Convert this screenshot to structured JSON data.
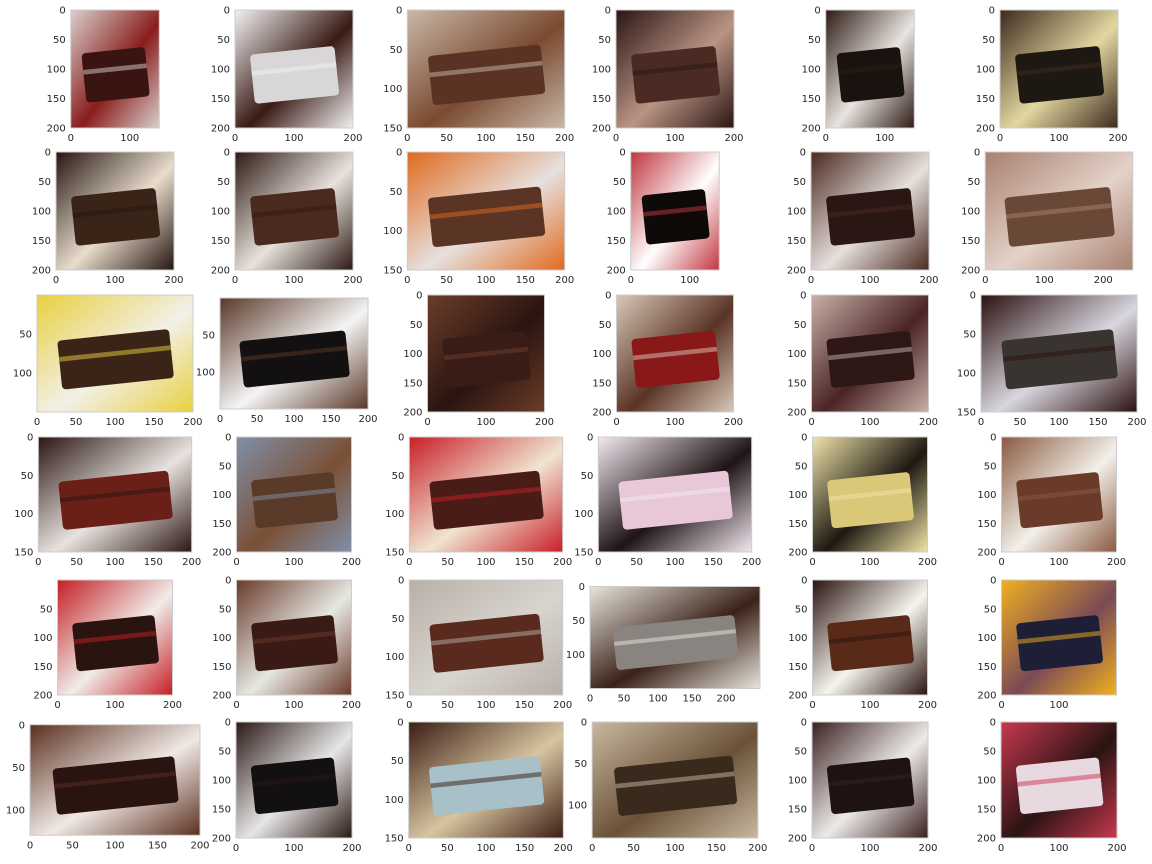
{
  "chart_data": {
    "type": "image-grid",
    "grid": {
      "rows": 6,
      "cols": 6
    },
    "axis_style": {
      "grid": false,
      "frame_color": "#cccccc",
      "tick_label_color": "#262626"
    },
    "panels": [
      {
        "xlim": [
          0,
          150
        ],
        "ylim": [
          200,
          0
        ],
        "xticks": [
          0,
          100
        ],
        "yticks": [
          0,
          50,
          100,
          150,
          200
        ],
        "palette": [
          "#3a1410",
          "#8a1d1d",
          "#d8d0cc"
        ]
      },
      {
        "xlim": [
          0,
          200
        ],
        "ylim": [
          200,
          0
        ],
        "xticks": [
          0,
          100,
          200
        ],
        "yticks": [
          0,
          50,
          100,
          150,
          200
        ],
        "palette": [
          "#d8d6d6",
          "#3a1a14",
          "#f2f2f2"
        ]
      },
      {
        "xlim": [
          0,
          200
        ],
        "ylim": [
          150,
          0
        ],
        "xticks": [
          0,
          50,
          100,
          150,
          200
        ],
        "yticks": [
          0,
          50,
          100,
          150
        ],
        "palette": [
          "#5a3324",
          "#7b4a30",
          "#c8b8a8"
        ]
      },
      {
        "xlim": [
          0,
          200
        ],
        "ylim": [
          200,
          0
        ],
        "xticks": [
          0,
          100,
          200
        ],
        "yticks": [
          0,
          50,
          100,
          150,
          200
        ],
        "palette": [
          "#4a2a22",
          "#b99484",
          "#2a1512"
        ]
      },
      {
        "xlim": [
          0,
          150
        ],
        "ylim": [
          200,
          0
        ],
        "xticks": [
          0,
          100
        ],
        "yticks": [
          0,
          50,
          100,
          150,
          200
        ],
        "palette": [
          "#1a120e",
          "#e8e4e0",
          "#2e1a14"
        ]
      },
      {
        "xlim": [
          0,
          200
        ],
        "ylim": [
          200,
          0
        ],
        "xticks": [
          0,
          100,
          200
        ],
        "yticks": [
          0,
          50,
          100,
          150,
          200
        ],
        "palette": [
          "#1e1812",
          "#e3d7a0",
          "#3b2a1e"
        ]
      },
      {
        "xlim": [
          0,
          200
        ],
        "ylim": [
          200,
          0
        ],
        "xticks": [
          0,
          100,
          200
        ],
        "yticks": [
          0,
          50,
          100,
          150,
          200
        ],
        "palette": [
          "#3a2418",
          "#e8dccc",
          "#241510"
        ]
      },
      {
        "xlim": [
          0,
          200
        ],
        "ylim": [
          200,
          0
        ],
        "xticks": [
          0,
          100,
          200
        ],
        "yticks": [
          0,
          50,
          100,
          150,
          200
        ],
        "palette": [
          "#4a2a1e",
          "#e8e2dc",
          "#2c1812"
        ]
      },
      {
        "xlim": [
          0,
          200
        ],
        "ylim": [
          150,
          0
        ],
        "xticks": [
          0,
          50,
          100,
          150,
          200
        ],
        "yticks": [
          0,
          50,
          100,
          150
        ],
        "palette": [
          "#5a3424",
          "#e6e0de",
          "#e06a1e"
        ]
      },
      {
        "xlim": [
          0,
          150
        ],
        "ylim": [
          200,
          0
        ],
        "xticks": [
          0,
          100
        ],
        "yticks": [
          0,
          50,
          100,
          150,
          200
        ],
        "palette": [
          "#0e0a08",
          "#ffffff",
          "#c0363e"
        ]
      },
      {
        "xlim": [
          0,
          200
        ],
        "ylim": [
          200,
          0
        ],
        "xticks": [
          0,
          100,
          200
        ],
        "yticks": [
          0,
          50,
          100,
          150,
          200
        ],
        "palette": [
          "#2a1612",
          "#e6e0dc",
          "#4a2a20"
        ]
      },
      {
        "xlim": [
          0,
          250
        ],
        "ylim": [
          200,
          0
        ],
        "xticks": [
          0,
          100,
          200
        ],
        "yticks": [
          0,
          50,
          100,
          150,
          200
        ],
        "palette": [
          "#6a4838",
          "#e4d2c8",
          "#a88070"
        ]
      },
      {
        "xlim": [
          0,
          200
        ],
        "ylim": [
          150,
          0
        ],
        "xticks": [
          0,
          50,
          100,
          150,
          200
        ],
        "yticks": [
          50,
          100
        ],
        "palette": [
          "#3a2418",
          "#f2f0e8",
          "#e8d040"
        ]
      },
      {
        "xlim": [
          0,
          200
        ],
        "ylim": [
          150,
          0
        ],
        "xticks": [
          0,
          50,
          100,
          150,
          200
        ],
        "yticks": [
          50,
          100
        ],
        "palette": [
          "#121010",
          "#f4f4f4",
          "#5a3828"
        ]
      },
      {
        "xlim": [
          0,
          200
        ],
        "ylim": [
          200,
          0
        ],
        "xticks": [
          0,
          100,
          200
        ],
        "yticks": [
          0,
          50,
          100,
          150,
          200
        ],
        "palette": [
          "#3a1c16",
          "#2a1410",
          "#6b3d2a"
        ]
      },
      {
        "xlim": [
          0,
          200
        ],
        "ylim": [
          200,
          0
        ],
        "xticks": [
          0,
          100,
          200
        ],
        "yticks": [
          0,
          50,
          100,
          150,
          200
        ],
        "palette": [
          "#8a1818",
          "#5a3426",
          "#d8c8b8"
        ]
      },
      {
        "xlim": [
          0,
          200
        ],
        "ylim": [
          200,
          0
        ],
        "xticks": [
          0,
          100,
          200
        ],
        "yticks": [
          0,
          50,
          100,
          150,
          200
        ],
        "palette": [
          "#2e1816",
          "#4a2424",
          "#c8b0a8"
        ]
      },
      {
        "xlim": [
          0,
          200
        ],
        "ylim": [
          150,
          0
        ],
        "xticks": [
          0,
          50,
          100,
          150,
          200
        ],
        "yticks": [
          0,
          50,
          100,
          150
        ],
        "palette": [
          "#3a3430",
          "#d8d6de",
          "#2a1010"
        ]
      },
      {
        "xlim": [
          0,
          200
        ],
        "ylim": [
          150,
          0
        ],
        "xticks": [
          0,
          50,
          100,
          150,
          200
        ],
        "yticks": [
          0,
          50,
          100,
          150
        ],
        "palette": [
          "#6a2016",
          "#e8e2de",
          "#2a1612"
        ]
      },
      {
        "xlim": [
          0,
          200
        ],
        "ylim": [
          200,
          0
        ],
        "xticks": [
          0,
          100,
          200
        ],
        "yticks": [
          0,
          50,
          100,
          150,
          200
        ],
        "palette": [
          "#5a3a28",
          "#7a5036",
          "#8090a8"
        ]
      },
      {
        "xlim": [
          0,
          200
        ],
        "ylim": [
          150,
          0
        ],
        "xticks": [
          0,
          50,
          100,
          150,
          200
        ],
        "yticks": [
          0,
          50,
          100,
          150
        ],
        "palette": [
          "#4a1c18",
          "#f0e4d0",
          "#c81e28"
        ]
      },
      {
        "xlim": [
          0,
          200
        ],
        "ylim": [
          150,
          0
        ],
        "xticks": [
          0,
          50,
          100,
          150,
          200
        ],
        "yticks": [
          0,
          50,
          100,
          150
        ],
        "palette": [
          "#e8c8d8",
          "#1e1416",
          "#f4e8f0"
        ]
      },
      {
        "xlim": [
          0,
          200
        ],
        "ylim": [
          200,
          0
        ],
        "xticks": [
          0,
          100,
          200
        ],
        "yticks": [
          0,
          50,
          100,
          150,
          200
        ],
        "palette": [
          "#d8c878",
          "#1e1812",
          "#efe4a8"
        ]
      },
      {
        "xlim": [
          0,
          200
        ],
        "ylim": [
          200,
          0
        ],
        "xticks": [
          0,
          100,
          200
        ],
        "yticks": [
          0,
          50,
          100,
          150,
          200
        ],
        "palette": [
          "#6a3a2a",
          "#f2f0ea",
          "#8a5a40"
        ]
      },
      {
        "xlim": [
          0,
          200
        ],
        "ylim": [
          200,
          0
        ],
        "xticks": [
          0,
          100,
          200
        ],
        "yticks": [
          50,
          100,
          150,
          200
        ],
        "palette": [
          "#2a1410",
          "#f0ece8",
          "#c41e24"
        ]
      },
      {
        "xlim": [
          0,
          200
        ],
        "ylim": [
          200,
          0
        ],
        "xticks": [
          0,
          100,
          200
        ],
        "yticks": [
          0,
          50,
          100,
          150,
          200
        ],
        "palette": [
          "#3a1a14",
          "#e6e8e2",
          "#6a3a2a"
        ]
      },
      {
        "xlim": [
          0,
          200
        ],
        "ylim": [
          150,
          0
        ],
        "xticks": [
          0,
          50,
          100,
          150,
          200
        ],
        "yticks": [
          0,
          50,
          100,
          150
        ],
        "palette": [
          "#5a2a1e",
          "#d8d4ce",
          "#b8b0a8"
        ]
      },
      {
        "xlim": [
          0,
          250
        ],
        "ylim": [
          150,
          0
        ],
        "xticks": [
          0,
          50,
          100,
          150,
          200
        ],
        "yticks": [
          0,
          50,
          100
        ],
        "palette": [
          "#8a8480",
          "#3a2218",
          "#e8e4dc"
        ]
      },
      {
        "xlim": [
          0,
          200
        ],
        "ylim": [
          200,
          0
        ],
        "xticks": [
          0,
          100,
          200
        ],
        "yticks": [
          0,
          50,
          100,
          150,
          200
        ],
        "palette": [
          "#5a2a18",
          "#f6f4ee",
          "#2a1410"
        ]
      },
      {
        "xlim": [
          0,
          200
        ],
        "ylim": [
          200,
          0
        ],
        "xticks": [
          0,
          100
        ],
        "yticks": [
          0,
          50,
          100,
          150,
          200
        ],
        "palette": [
          "#1e1e36",
          "#7a4a56",
          "#f2b020"
        ]
      },
      {
        "xlim": [
          0,
          200
        ],
        "ylim": [
          130,
          0
        ],
        "xticks": [
          0,
          50,
          100,
          150,
          200
        ],
        "yticks": [
          0,
          50,
          100
        ],
        "palette": [
          "#2a1410",
          "#f0e8e4",
          "#5a3020"
        ]
      },
      {
        "xlim": [
          0,
          200
        ],
        "ylim": [
          200,
          0
        ],
        "xticks": [
          0,
          100,
          200
        ],
        "yticks": [
          0,
          50,
          100,
          150,
          200
        ],
        "palette": [
          "#121010",
          "#e6e6e6",
          "#2a1814"
        ]
      },
      {
        "xlim": [
          0,
          200
        ],
        "ylim": [
          150,
          0
        ],
        "xticks": [
          0,
          50,
          100,
          150,
          200
        ],
        "yticks": [
          0,
          50,
          100,
          150
        ],
        "palette": [
          "#a8c0c8",
          "#d8c4a0",
          "#3a1e14"
        ]
      },
      {
        "xlim": [
          0,
          200
        ],
        "ylim": [
          140,
          0
        ],
        "xticks": [
          0,
          50,
          100,
          150,
          200
        ],
        "yticks": [
          0,
          50,
          100
        ],
        "palette": [
          "#3a2a1e",
          "#6a5238",
          "#c8b8a0"
        ]
      },
      {
        "xlim": [
          0,
          200
        ],
        "ylim": [
          200,
          0
        ],
        "xticks": [
          0,
          100,
          200
        ],
        "yticks": [
          0,
          50,
          100,
          150,
          200
        ],
        "palette": [
          "#1e1212",
          "#eceae8",
          "#3a2020"
        ]
      },
      {
        "xlim": [
          0,
          200
        ],
        "ylim": [
          200,
          0
        ],
        "xticks": [
          0,
          100,
          200
        ],
        "yticks": [
          0,
          50,
          100,
          150,
          200
        ],
        "palette": [
          "#e8d8e0",
          "#2a1412",
          "#c83850"
        ]
      }
    ]
  }
}
